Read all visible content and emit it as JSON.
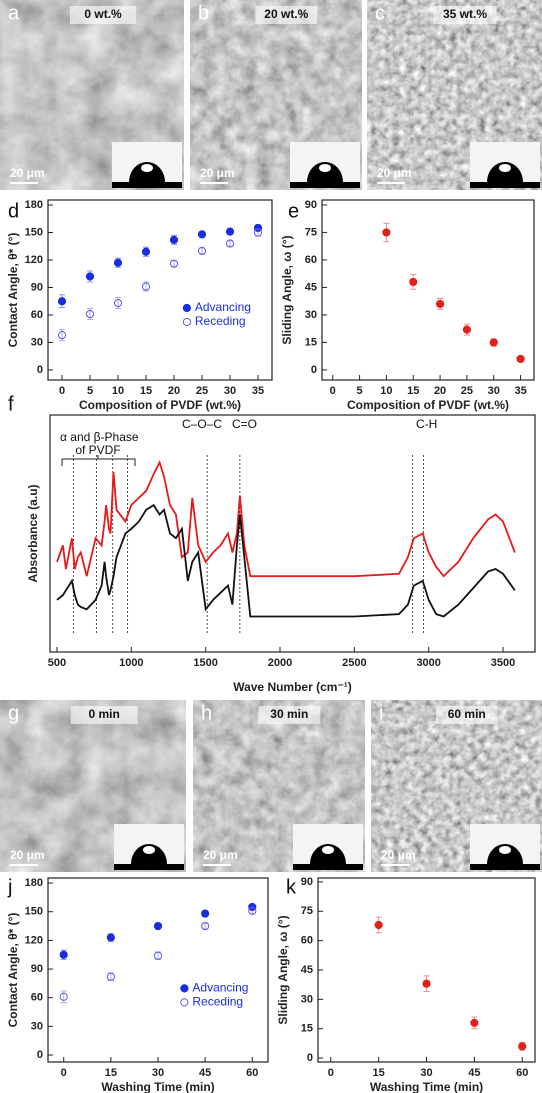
{
  "images": [
    {
      "letter": "a",
      "label": "0 wt.%",
      "scale_bar": "20 μm"
    },
    {
      "letter": "b",
      "label": "20 wt.%",
      "scale_bar": "20 μm"
    },
    {
      "letter": "c",
      "label": "35 wt.%",
      "scale_bar": "20 μm"
    },
    {
      "letter": "g",
      "label": "0 min",
      "scale_bar": "20 μm"
    },
    {
      "letter": "h",
      "label": "30 min",
      "scale_bar": "20 μm"
    },
    {
      "letter": "i",
      "label": "60 min",
      "scale_bar": "20 μm"
    }
  ],
  "chart_data": [
    {
      "type": "scatter",
      "panel": "d",
      "x_label": "Composition of PVDF (wt.%)",
      "y_label": "Contact Angle, θ* (°)",
      "x": [
        0,
        5,
        10,
        15,
        20,
        25,
        30,
        35
      ],
      "series": [
        {
          "name": "Advancing",
          "color": "#1a2ee0",
          "marker": "filled",
          "values": [
            75,
            102,
            117,
            129,
            142,
            148,
            151,
            155
          ],
          "errors": [
            7,
            6,
            5,
            5,
            5,
            3,
            3,
            3
          ]
        },
        {
          "name": "Receding",
          "color": "#5a5ae6",
          "marker": "open",
          "values": [
            38,
            61,
            73,
            91,
            116,
            130,
            138,
            150
          ],
          "errors": [
            6,
            6,
            6,
            5,
            3,
            3,
            3,
            4
          ]
        }
      ],
      "xlim": [
        -2.5,
        37.5
      ],
      "xticks": [
        0,
        5,
        10,
        15,
        20,
        25,
        30,
        35
      ],
      "ylim": [
        -11,
        185.5
      ],
      "yticks": [
        0,
        30,
        60,
        90,
        120,
        150,
        180
      ],
      "legend": "center right"
    },
    {
      "type": "scatter",
      "panel": "e",
      "x_label": "Composition of PVDF (wt.%)",
      "y_label": "Sliding Angle, ω (°)",
      "x": [
        10,
        15,
        20,
        25,
        30,
        35
      ],
      "series": [
        {
          "color": "#e0201a",
          "marker": "filled",
          "values": [
            75,
            48,
            36,
            22,
            15,
            6
          ],
          "errors": [
            5,
            4,
            3,
            3,
            2,
            1
          ]
        }
      ],
      "xlim": [
        -2,
        37.5
      ],
      "xticks": [
        0,
        5,
        10,
        15,
        20,
        25,
        30,
        35
      ],
      "ylim": [
        -5.5,
        92.7
      ],
      "yticks": [
        0,
        15,
        30,
        45,
        60,
        75,
        90
      ]
    },
    {
      "type": "line",
      "panel": "f",
      "x_label": "Wave Number (cm⁻¹)",
      "y_label": "Absorbance (a.u)",
      "x": [
        500,
        540,
        560,
        600,
        620,
        640,
        660,
        700,
        760,
        800,
        820,
        830,
        850,
        860,
        880,
        900,
        960,
        1000,
        1050,
        1100,
        1150,
        1190,
        1220,
        1260,
        1300,
        1340,
        1380,
        1410,
        1450,
        1500,
        1550,
        1600,
        1650,
        1680,
        1710,
        1730,
        1760,
        1800,
        2000,
        2500,
        2800,
        2860,
        2900,
        2960,
        3000,
        3050,
        3100,
        3200,
        3300,
        3400,
        3450,
        3500,
        3580
      ],
      "series": [
        {
          "color": "#e8191a",
          "values": [
            38,
            45,
            35,
            48,
            35,
            40,
            42,
            32,
            48,
            45,
            55,
            62,
            52,
            50,
            76,
            60,
            55,
            62,
            65,
            68,
            75,
            80,
            74,
            62,
            58,
            40,
            42,
            65,
            45,
            38,
            42,
            45,
            50,
            42,
            50,
            66,
            45,
            32,
            32,
            32,
            33,
            40,
            48,
            50,
            42,
            36,
            32,
            38,
            48,
            56,
            58,
            55,
            42
          ]
        },
        {
          "color": "#111111",
          "values": [
            22,
            24,
            26,
            30,
            24,
            20,
            19,
            18,
            22,
            28,
            38,
            32,
            24,
            26,
            32,
            40,
            50,
            52,
            55,
            60,
            62,
            58,
            60,
            50,
            48,
            52,
            30,
            38,
            42,
            18,
            22,
            25,
            28,
            20,
            45,
            58,
            40,
            15,
            15,
            15,
            16,
            20,
            28,
            30,
            22,
            16,
            15,
            20,
            27,
            34,
            35,
            33,
            26
          ]
        }
      ],
      "vlines": [
        610,
        765,
        875,
        975,
        1510,
        1730,
        2890,
        2965
      ],
      "annotations": [
        "α and β-Phase",
        "of PVDF",
        "C–O–C",
        "C=O",
        "C-H"
      ],
      "xlim": [
        453,
        3715
      ],
      "xticks": [
        500,
        1000,
        1500,
        2000,
        2500,
        3000,
        3500
      ],
      "ylim": [
        0,
        100
      ]
    },
    {
      "type": "scatter",
      "panel": "j",
      "x_label": "Washing Time (min)",
      "y_label": "Contact Angle, θ* (°)",
      "x": [
        0,
        15,
        30,
        45,
        60
      ],
      "series": [
        {
          "name": "Advancing",
          "color": "#1a2ee0",
          "marker": "filled",
          "values": [
            105,
            123,
            135,
            148,
            155
          ],
          "errors": [
            5,
            4,
            3,
            3,
            2
          ]
        },
        {
          "name": "Receding",
          "color": "#5a5ae6",
          "marker": "open",
          "values": [
            61,
            82,
            104,
            135,
            151
          ],
          "errors": [
            6,
            4,
            4,
            3,
            3
          ]
        }
      ],
      "xlim": [
        -5,
        65
      ],
      "xticks": [
        0,
        15,
        30,
        45,
        60
      ],
      "ylim": [
        -7.3,
        185.3
      ],
      "yticks": [
        0,
        30,
        60,
        90,
        120,
        150,
        180
      ],
      "legend": "center right"
    },
    {
      "type": "scatter",
      "panel": "k",
      "x_label": "Washing Time (min)",
      "y_label": "Sliding Angle, ω (°)",
      "x": [
        15,
        30,
        45,
        60
      ],
      "series": [
        {
          "color": "#e0201a",
          "marker": "filled",
          "values": [
            68,
            38,
            18,
            6
          ],
          "errors": [
            4,
            4,
            3,
            2
          ]
        }
      ],
      "xlim": [
        -4,
        64
      ],
      "xticks": [
        0,
        15,
        30,
        45,
        60
      ],
      "ylim": [
        -2,
        92
      ],
      "yticks": [
        0,
        15,
        30,
        45,
        60,
        75,
        90
      ]
    }
  ]
}
